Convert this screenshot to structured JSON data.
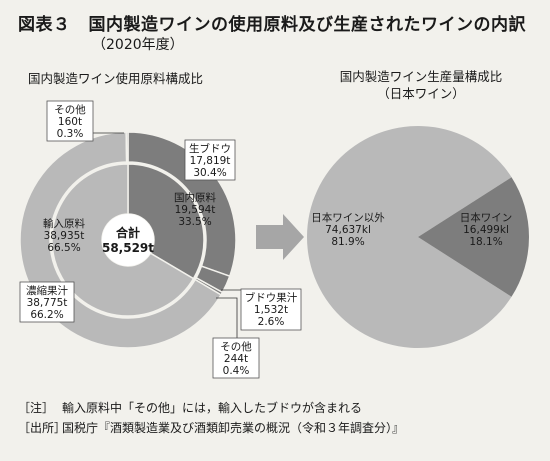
{
  "header": {
    "figure_no": "図表３",
    "title": "国内製造ワインの使用原料及び生産されたワインの内訳",
    "subtitle": "（2020年度）"
  },
  "chart_data": [
    {
      "type": "pie",
      "subtype": "nested-donut",
      "title": "国内製造ワイン使用原料構成比",
      "unit": "t",
      "center_label": {
        "label": "合計",
        "value": "58,529t"
      },
      "inner_ring": [
        {
          "name": "国内原料",
          "value_text": "19,594t",
          "value": 19594,
          "share_text": "33.5%",
          "share": 33.5,
          "color": "#7d7d7d"
        },
        {
          "name": "輸入原料",
          "value_text": "38,935t",
          "value": 38935,
          "share_text": "66.5%",
          "share": 66.5,
          "color": "#b9b9b9"
        }
      ],
      "outer_ring": [
        {
          "name": "生ブドウ",
          "value_text": "17,819t",
          "value": 17819,
          "share_text": "30.4%",
          "share": 30.4,
          "color": "#7d7d7d"
        },
        {
          "name": "ブドウ果汁",
          "value_text": "1,532t",
          "value": 1532,
          "share_text": "2.6%",
          "share": 2.6,
          "color": "#7d7d7d"
        },
        {
          "name": "その他",
          "value_text": "244t",
          "value": 244,
          "share_text": "0.4%",
          "share": 0.4,
          "color": "#7d7d7d"
        },
        {
          "name": "濃縮果汁",
          "value_text": "38,775t",
          "value": 38775,
          "share_text": "66.2%",
          "share": 66.2,
          "color": "#b9b9b9"
        },
        {
          "name": "その他",
          "value_text": "160t",
          "value": 160,
          "share_text": "0.3%",
          "share": 0.3,
          "color": "#b9b9b9"
        }
      ]
    },
    {
      "type": "pie",
      "title": "国内製造ワイン生産量構成比",
      "title_line2": "（日本ワイン）",
      "unit": "kl",
      "slices": [
        {
          "name": "日本ワイン",
          "value_text": "16,499kl",
          "value": 16499,
          "share_text": "18.1%",
          "share": 18.1,
          "color": "#7d7d7d"
        },
        {
          "name": "日本ワイン以外",
          "value_text": "74,637kl",
          "value": 74637,
          "share_text": "81.9%",
          "share": 81.9,
          "color": "#b9b9b9"
        }
      ]
    }
  ],
  "colors": {
    "dark": "#7d7d7d",
    "light": "#b9b9b9",
    "arrow": "#a6a6a6",
    "background": "#f2f1ec"
  },
  "notes": [
    {
      "tag": "［注］",
      "text": "輸入原料中「その他」には，輸入したブドウが含まれる"
    },
    {
      "tag": "［出所］",
      "text": "国税庁『酒類製造業及び酒類卸売業の概況（令和３年調査分）』"
    }
  ]
}
